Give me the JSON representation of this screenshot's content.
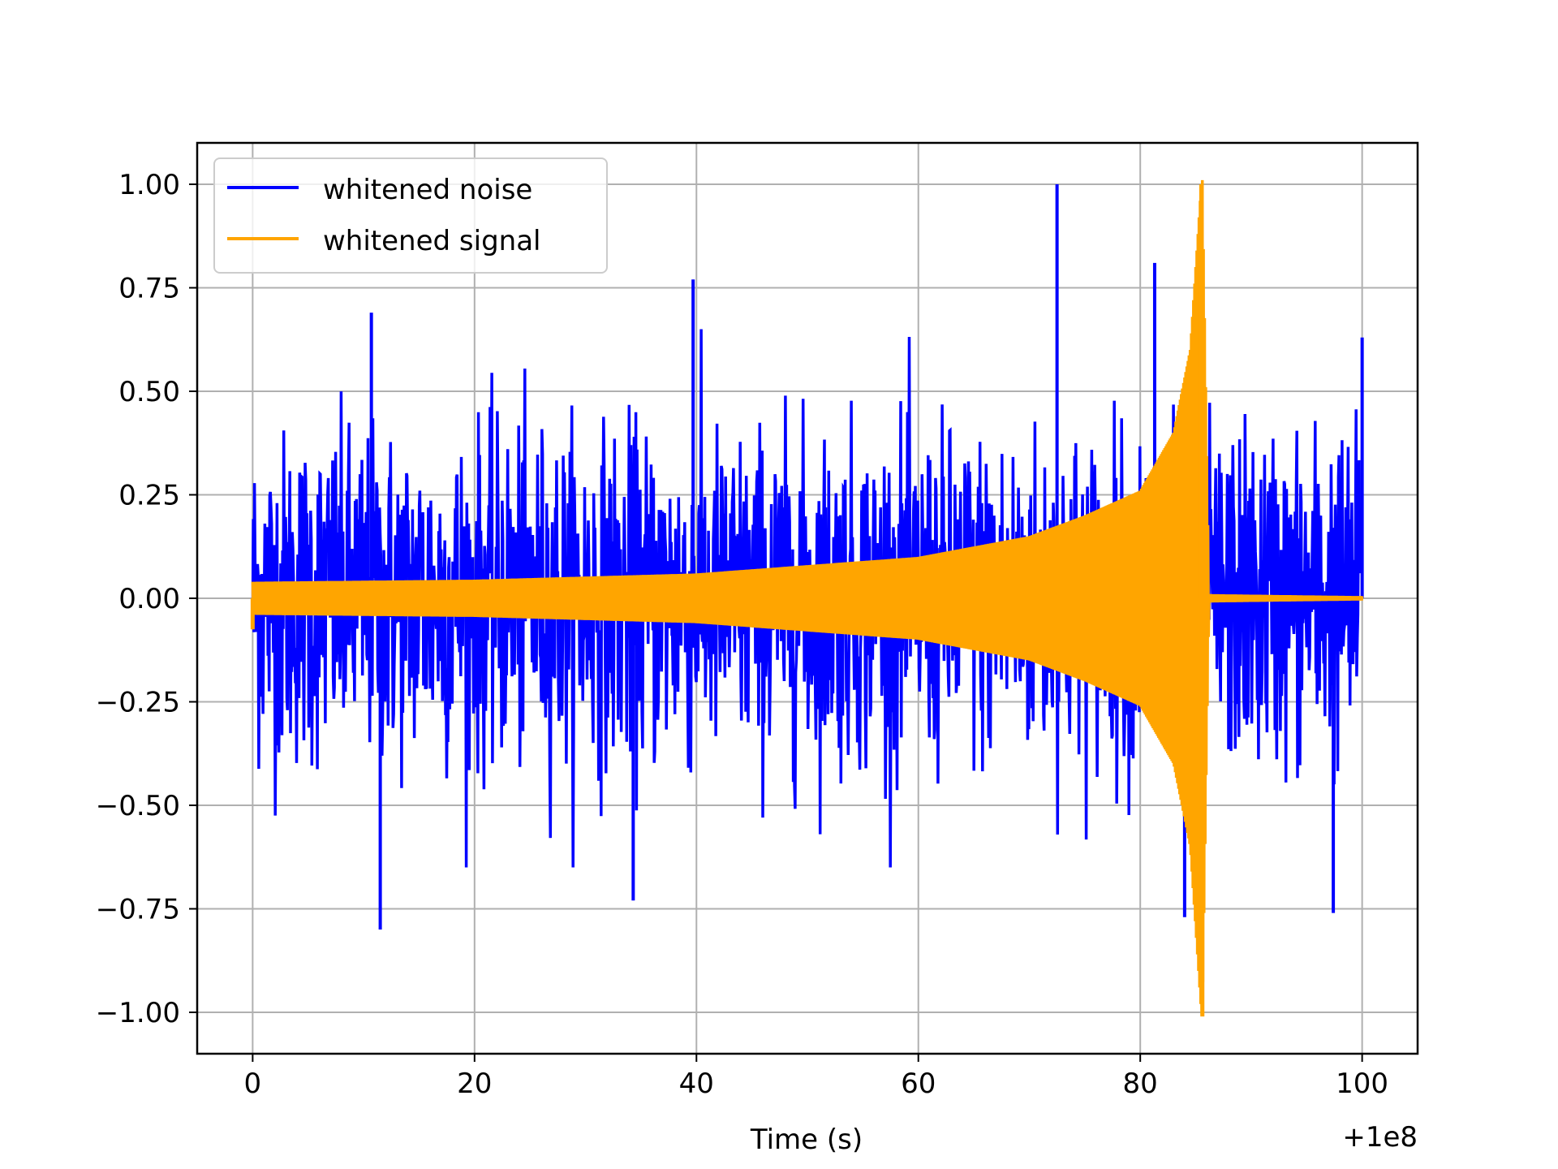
{
  "chart_data": {
    "type": "line",
    "title": "",
    "xlabel": "Time (s)",
    "ylabel": "",
    "x_offset_label": "+1e8",
    "xlim": [
      -5,
      105
    ],
    "ylim": [
      -1.1,
      1.1
    ],
    "xticks": [
      0,
      20,
      40,
      60,
      80,
      100
    ],
    "xtick_labels": [
      "0",
      "20",
      "40",
      "60",
      "80",
      "100"
    ],
    "yticks": [
      1.0,
      0.75,
      0.5,
      0.25,
      0.0,
      -0.25,
      -0.5,
      -0.75,
      -1.0
    ],
    "ytick_labels": [
      "1.00",
      "0.75",
      "0.50",
      "0.25",
      "0.00",
      "−0.25",
      "−0.50",
      "−0.75",
      "−1.00"
    ],
    "grid": true,
    "legend_position": "top-left",
    "series": [
      {
        "name": "whitened noise",
        "color": "#0000ff",
        "x_range": [
          0,
          100
        ],
        "segments": [
          {
            "x": [
              0,
              84.3
            ],
            "envelope_upper": 0.45,
            "envelope_lower": -0.45
          },
          {
            "x": [
              86.2,
              100
            ],
            "envelope_upper": 0.45,
            "envelope_lower": -0.45
          }
        ],
        "peaks": [
          {
            "x": 11.5,
            "y": -0.8
          },
          {
            "x": 39.7,
            "y": 0.77
          },
          {
            "x": 72.5,
            "y": 1.0
          },
          {
            "x": 81.3,
            "y": 0.81
          },
          {
            "x": 84.0,
            "y": -0.77
          },
          {
            "x": 97.4,
            "y": -0.76
          },
          {
            "x": 34.3,
            "y": -0.73
          },
          {
            "x": 10.7,
            "y": 0.69
          },
          {
            "x": 100.0,
            "y": 0.63
          }
        ]
      },
      {
        "name": "whitened signal",
        "color": "#ffa500",
        "x_range": [
          0,
          100
        ],
        "envelope": [
          {
            "x": 0,
            "y": 0.04
          },
          {
            "x": 20,
            "y": 0.045
          },
          {
            "x": 40,
            "y": 0.06
          },
          {
            "x": 60,
            "y": 0.1
          },
          {
            "x": 70,
            "y": 0.15
          },
          {
            "x": 75,
            "y": 0.2
          },
          {
            "x": 80,
            "y": 0.26
          },
          {
            "x": 83,
            "y": 0.4
          },
          {
            "x": 84.5,
            "y": 0.6
          },
          {
            "x": 85.5,
            "y": 1.0
          },
          {
            "x": 85.6,
            "y": -1.01
          },
          {
            "x": 86.2,
            "y": 0.01
          },
          {
            "x": 100,
            "y": 0.005
          }
        ]
      }
    ]
  }
}
